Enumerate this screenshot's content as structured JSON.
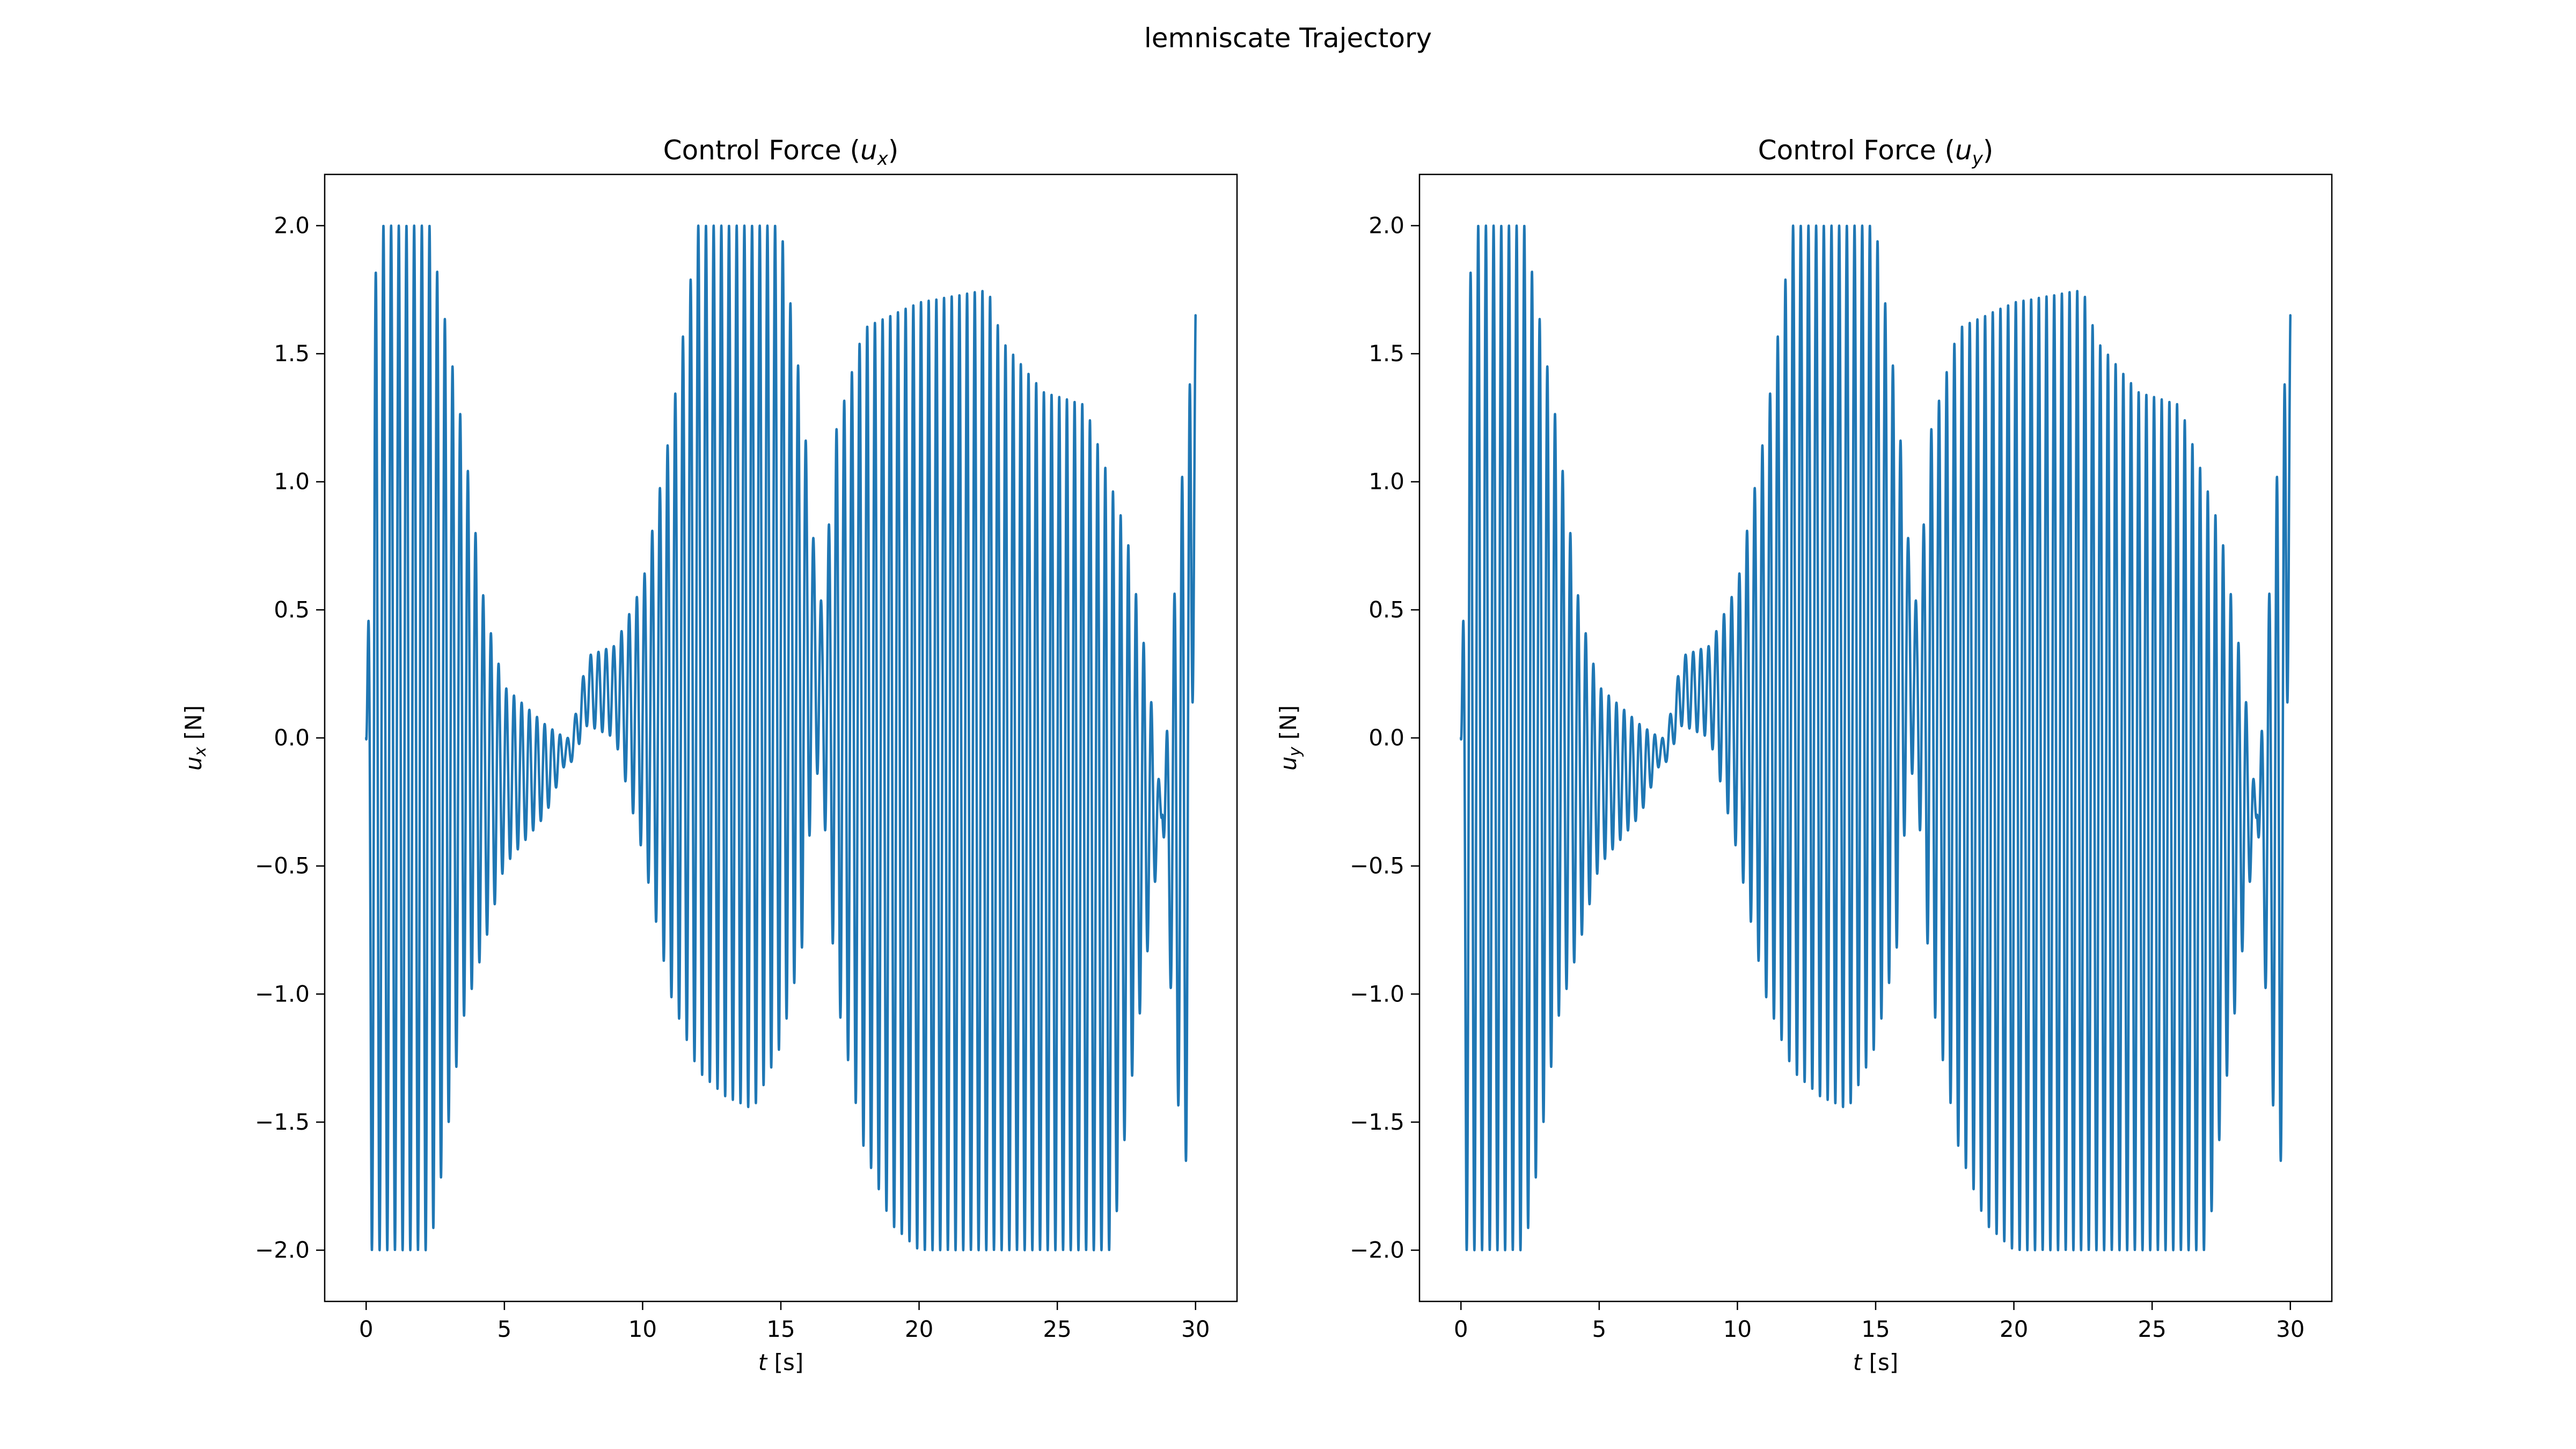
{
  "figure_title": "lemniscate Trajectory",
  "colors": {
    "series": "#1f77b4",
    "axes": "#000000",
    "background": "#ffffff"
  },
  "chart_data": [
    {
      "type": "line",
      "title": "Control Force (u_x)",
      "title_main": "Control Force (",
      "title_var": "u",
      "title_sub": "x",
      "title_end": ")",
      "xlabel": "t [s]",
      "xlabel_var": "t",
      "xlabel_unit": " [s]",
      "ylabel": "u_x [N]",
      "ylabel_var": "u",
      "ylabel_sub": "x",
      "ylabel_unit": " [N]",
      "xlim": [
        -1.5,
        31.5
      ],
      "ylim": [
        -2.2,
        2.2
      ],
      "xticks": [
        0,
        5,
        10,
        15,
        20,
        25,
        30
      ],
      "xtick_labels": [
        "0",
        "5",
        "10",
        "15",
        "20",
        "25",
        "30"
      ],
      "yticks": [
        2.0,
        1.5,
        1.0,
        0.5,
        0.0,
        -0.5,
        -1.0,
        -1.5,
        -2.0
      ],
      "ytick_labels": [
        "2.0",
        "1.5",
        "1.0",
        "0.5",
        "0.0",
        "−0.5",
        "−1.0",
        "−1.5",
        "−2.0"
      ],
      "grid": false,
      "signal": {
        "description": "oscillation ~3.6 Hz",
        "t_start": 0,
        "t_end": 30,
        "frequency_hz": 3.6,
        "saturation": 2.0,
        "upper_envelope": [
          [
            0,
            0
          ],
          [
            0.3,
            1.76
          ],
          [
            0.5,
            2.0
          ],
          [
            2.3,
            2.0
          ],
          [
            2.6,
            1.8
          ],
          [
            3.5,
            1.2
          ],
          [
            4.3,
            0.5
          ],
          [
            5.0,
            0.2
          ],
          [
            6.5,
            0.05
          ],
          [
            7.2,
            0.0
          ],
          [
            7.4,
            0.0
          ],
          [
            8.0,
            0.32
          ],
          [
            9.0,
            0.36
          ],
          [
            10.0,
            0.6
          ],
          [
            11.0,
            1.2
          ],
          [
            12.0,
            2.0
          ],
          [
            15.0,
            2.0
          ],
          [
            15.8,
            1.3
          ],
          [
            16.2,
            0.75
          ],
          [
            16.5,
            0.5
          ],
          [
            17.0,
            1.2
          ],
          [
            18.0,
            1.6
          ],
          [
            20.0,
            1.7
          ],
          [
            22.5,
            1.75
          ],
          [
            23.0,
            1.55
          ],
          [
            24.5,
            1.35
          ],
          [
            26.0,
            1.3
          ],
          [
            27.5,
            0.8
          ],
          [
            28.3,
            0.25
          ],
          [
            28.8,
            -0.3
          ],
          [
            29.2,
            0.5
          ],
          [
            29.5,
            1.0
          ],
          [
            30.0,
            1.65
          ]
        ],
        "lower_envelope": [
          [
            0,
            0
          ],
          [
            0.2,
            -2.0
          ],
          [
            2.3,
            -2.0
          ],
          [
            2.6,
            -1.8
          ],
          [
            3.5,
            -1.1
          ],
          [
            4.3,
            -0.8
          ],
          [
            5.0,
            -0.5
          ],
          [
            6.5,
            -0.3
          ],
          [
            7.2,
            -0.1
          ],
          [
            7.4,
            -0.1
          ],
          [
            8.0,
            0.05
          ],
          [
            9.0,
            0.0
          ],
          [
            10.0,
            -0.45
          ],
          [
            11.0,
            -1.0
          ],
          [
            12.0,
            -1.3
          ],
          [
            13.0,
            -1.4
          ],
          [
            14.0,
            -1.45
          ],
          [
            15.0,
            -1.2
          ],
          [
            15.8,
            -0.8
          ],
          [
            16.2,
            -0.1
          ],
          [
            16.5,
            -0.2
          ],
          [
            17.0,
            -1.0
          ],
          [
            18.0,
            -1.6
          ],
          [
            19.0,
            -1.9
          ],
          [
            20.0,
            -2.0
          ],
          [
            22.5,
            -2.0
          ],
          [
            23.0,
            -2.0
          ],
          [
            27.0,
            -2.0
          ],
          [
            27.5,
            -1.5
          ],
          [
            28.3,
            -0.8
          ],
          [
            28.8,
            -0.3
          ],
          [
            29.2,
            -1.2
          ],
          [
            29.5,
            -1.6
          ],
          [
            29.8,
            -1.7
          ],
          [
            30.0,
            1.65
          ]
        ]
      }
    },
    {
      "type": "line",
      "title": "Control Force (u_y)",
      "title_main": "Control Force (",
      "title_var": "u",
      "title_sub": "y",
      "title_end": ")",
      "xlabel": "t [s]",
      "xlabel_var": "t",
      "xlabel_unit": " [s]",
      "ylabel": "u_y [N]",
      "ylabel_var": "u",
      "ylabel_sub": "y",
      "ylabel_unit": " [N]",
      "xlim": [
        -1.5,
        31.5
      ],
      "ylim": [
        -2.2,
        2.2
      ],
      "xticks": [
        0,
        5,
        10,
        15,
        20,
        25,
        30
      ],
      "xtick_labels": [
        "0",
        "5",
        "10",
        "15",
        "20",
        "25",
        "30"
      ],
      "yticks": [
        2.0,
        1.5,
        1.0,
        0.5,
        0.0,
        -0.5,
        -1.0,
        -1.5,
        -2.0
      ],
      "ytick_labels": [
        "2.0",
        "1.5",
        "1.0",
        "0.5",
        "0.0",
        "−0.5",
        "−1.0",
        "−1.5",
        "−2.0"
      ],
      "grid": false,
      "signal": {
        "description": "oscillation ~3.6 Hz",
        "t_start": 0,
        "t_end": 30,
        "frequency_hz": 3.6,
        "saturation": 2.0,
        "upper_envelope": [
          [
            0,
            0
          ],
          [
            0.3,
            1.76
          ],
          [
            0.5,
            2.0
          ],
          [
            2.3,
            2.0
          ],
          [
            2.6,
            1.8
          ],
          [
            3.5,
            1.2
          ],
          [
            4.3,
            0.5
          ],
          [
            5.0,
            0.2
          ],
          [
            6.5,
            0.05
          ],
          [
            7.2,
            0.0
          ],
          [
            7.4,
            0.0
          ],
          [
            8.0,
            0.32
          ],
          [
            9.0,
            0.36
          ],
          [
            10.0,
            0.6
          ],
          [
            11.0,
            1.2
          ],
          [
            12.0,
            2.0
          ],
          [
            15.0,
            2.0
          ],
          [
            15.8,
            1.3
          ],
          [
            16.2,
            0.75
          ],
          [
            16.5,
            0.5
          ],
          [
            17.0,
            1.2
          ],
          [
            18.0,
            1.6
          ],
          [
            20.0,
            1.7
          ],
          [
            22.5,
            1.75
          ],
          [
            23.0,
            1.55
          ],
          [
            24.5,
            1.35
          ],
          [
            26.0,
            1.3
          ],
          [
            27.5,
            0.8
          ],
          [
            28.3,
            0.25
          ],
          [
            28.8,
            -0.3
          ],
          [
            29.2,
            0.5
          ],
          [
            29.5,
            1.0
          ],
          [
            30.0,
            1.65
          ]
        ],
        "lower_envelope": [
          [
            0,
            0
          ],
          [
            0.2,
            -2.0
          ],
          [
            2.3,
            -2.0
          ],
          [
            2.6,
            -1.8
          ],
          [
            3.5,
            -1.1
          ],
          [
            4.3,
            -0.8
          ],
          [
            5.0,
            -0.5
          ],
          [
            6.5,
            -0.3
          ],
          [
            7.2,
            -0.1
          ],
          [
            7.4,
            -0.1
          ],
          [
            8.0,
            0.05
          ],
          [
            9.0,
            0.0
          ],
          [
            10.0,
            -0.45
          ],
          [
            11.0,
            -1.0
          ],
          [
            12.0,
            -1.3
          ],
          [
            13.0,
            -1.4
          ],
          [
            14.0,
            -1.45
          ],
          [
            15.0,
            -1.2
          ],
          [
            15.8,
            -0.8
          ],
          [
            16.2,
            -0.1
          ],
          [
            16.5,
            -0.2
          ],
          [
            17.0,
            -1.0
          ],
          [
            18.0,
            -1.6
          ],
          [
            19.0,
            -1.9
          ],
          [
            20.0,
            -2.0
          ],
          [
            22.5,
            -2.0
          ],
          [
            23.0,
            -2.0
          ],
          [
            27.0,
            -2.0
          ],
          [
            27.5,
            -1.5
          ],
          [
            28.3,
            -0.8
          ],
          [
            28.8,
            -0.3
          ],
          [
            29.2,
            -1.2
          ],
          [
            29.5,
            -1.6
          ],
          [
            29.8,
            -1.7
          ],
          [
            30.0,
            1.65
          ]
        ]
      }
    }
  ]
}
